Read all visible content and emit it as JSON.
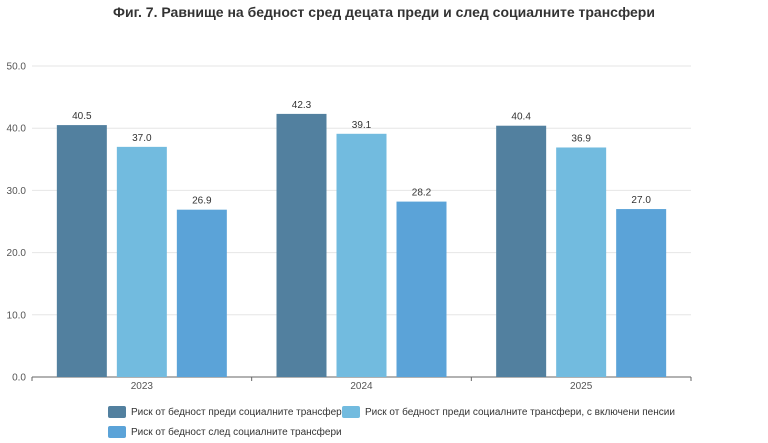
{
  "chart_data": {
    "type": "bar",
    "title": "Фиг. 7. Равнище на бедност сред децата преди и след социалните трансфери",
    "categories": [
      "2023",
      "2024",
      "2025"
    ],
    "series": [
      {
        "name": "Риск от бедност преди социалните трансфери",
        "values": [
          40.5,
          42.3,
          40.4
        ],
        "color": "#52809f"
      },
      {
        "name": "Риск от бедност преди социалните трансфери, с включени пенсии",
        "values": [
          37.0,
          39.1,
          36.9
        ],
        "color": "#72bbdf"
      },
      {
        "name": "Риск от бедност след социалните трансфери",
        "values": [
          26.9,
          28.2,
          27.0
        ],
        "color": "#5ba3d8"
      }
    ],
    "yticks": [
      "0.0",
      "10.0",
      "20.0",
      "30.0",
      "40.0",
      "50.0"
    ],
    "ylim": [
      0,
      50
    ],
    "grid": true,
    "legend": "bottom"
  }
}
